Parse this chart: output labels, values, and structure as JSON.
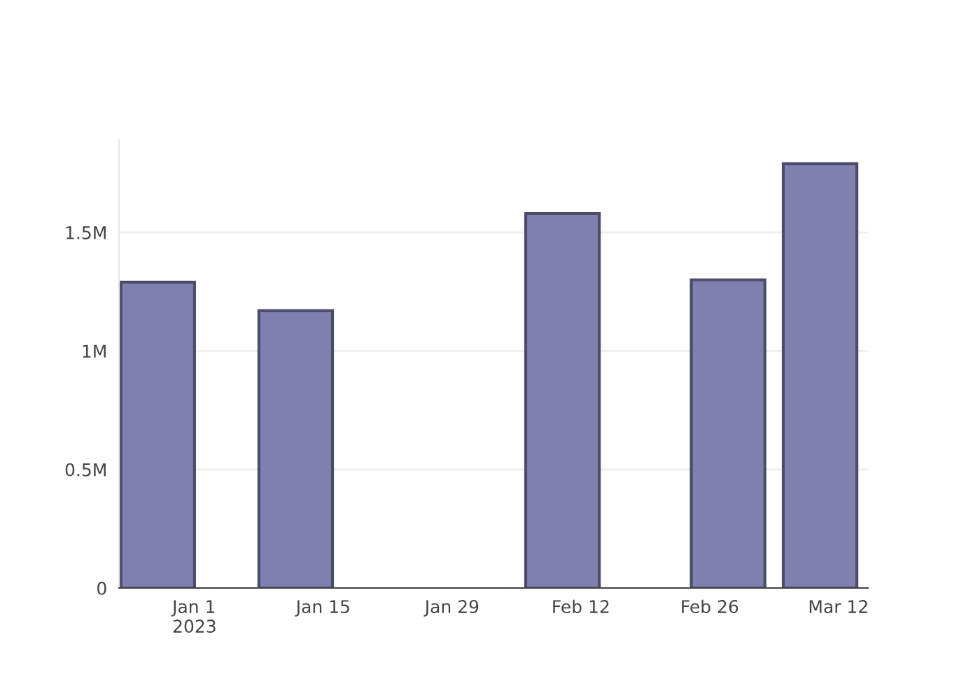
{
  "chart_data": {
    "type": "bar",
    "x": [
      "2022-12-28",
      "2023-01-12",
      "2023-02-10",
      "2023-02-28",
      "2023-03-10"
    ],
    "values": [
      1290000,
      1170000,
      1580000,
      1300000,
      1790000
    ],
    "color": "#7f7fb0",
    "xlim": [
      "2022-12-23T19:00",
      "2023-03-15T05:00"
    ],
    "xticks": [
      {
        "value": "2023-01-01",
        "label": "Jan 1\n2023"
      },
      {
        "value": "2023-01-15",
        "label": "Jan 15"
      },
      {
        "value": "2023-01-29",
        "label": "Jan 29"
      },
      {
        "value": "2023-02-12",
        "label": "Feb 12"
      },
      {
        "value": "2023-02-26",
        "label": "Feb 26"
      },
      {
        "value": "2023-03-12",
        "label": "Mar 12"
      }
    ],
    "ylim": [
      0,
      1890000
    ],
    "yticks": [
      0,
      {
        "value": 500000,
        "label": "0.5M"
      },
      {
        "value": 1000000,
        "label": "1M"
      },
      {
        "value": 1500000,
        "label": "1.5M"
      }
    ],
    "grid": "y"
  }
}
